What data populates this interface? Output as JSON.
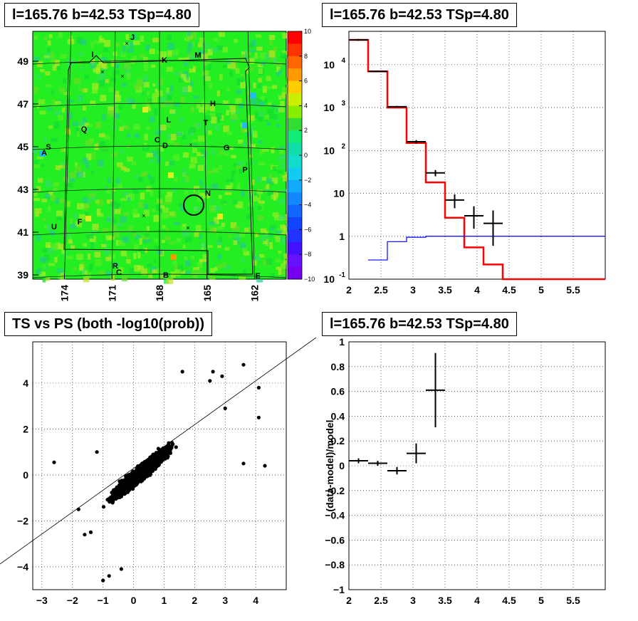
{
  "panels": {
    "map": {
      "title": "l=165.76 b=42.53 TSp=4.80",
      "y_ticks": [
        "49",
        "47",
        "45",
        "43",
        "41",
        "39"
      ],
      "x_ticks": [
        "174",
        "171",
        "168",
        "165",
        "162"
      ],
      "colorbar_ticks": [
        "10",
        "8",
        "6",
        "4",
        "2",
        "0",
        "−2",
        "−4",
        "−6",
        "−8",
        "−10"
      ],
      "region_letters": [
        "J",
        "I",
        "K",
        "M",
        "H",
        "L",
        "T",
        "Q",
        "C",
        "D",
        "G",
        "S",
        "A",
        "P",
        "N",
        "U",
        "F",
        "R",
        "C",
        "B",
        "E"
      ]
    },
    "spectrum": {
      "title": "l=165.76 b=42.53 TSp=4.80"
    },
    "scatter": {
      "title": "TS vs PS (both -log10(prob))"
    },
    "ratio": {
      "title": "l=165.76 b=42.53 TSp=4.80"
    }
  },
  "chart_data": [
    {
      "type": "heatmap",
      "title": "l=165.76 b=42.53 TSp=4.80",
      "xlabel": "",
      "ylabel": "",
      "x_ticks": [
        174,
        171,
        168,
        165,
        162
      ],
      "y_ticks": [
        49,
        47,
        45,
        43,
        41,
        39
      ],
      "xlim": [
        176,
        160
      ],
      "ylim": [
        38.8,
        50.4
      ],
      "z_range": [
        -10,
        10
      ],
      "colorbar_ticks": [
        10,
        8,
        6,
        4,
        2,
        0,
        -2,
        -4,
        -6,
        -8,
        -10
      ],
      "circle_center": [
        165.76,
        42.53
      ],
      "colors": {
        "background": "#22ee22",
        "grid": "#000000"
      }
    },
    {
      "type": "line",
      "title": "l=165.76 b=42.53 TSp=4.80",
      "xlabel": "",
      "ylabel": "",
      "xlim": [
        2,
        6
      ],
      "ylim": [
        0.1,
        60000
      ],
      "yscale": "log",
      "x_ticks": [
        2,
        2.5,
        3,
        3.5,
        4,
        4.5,
        5,
        5.5
      ],
      "y_ticks": [
        "10^-1",
        "1",
        "10",
        "10^2",
        "10^3",
        "10^4"
      ],
      "grid": true,
      "series": [
        {
          "color": "#ff0000",
          "style": "step",
          "edges": [
            2.0,
            2.3,
            2.6,
            2.9,
            3.2,
            3.5,
            3.8,
            4.1,
            4.4,
            6.0
          ],
          "values": [
            38000,
            7000,
            1000,
            150,
            18,
            2.7,
            0.55,
            0.22,
            0.1
          ]
        },
        {
          "color": "#0000ff",
          "style": "step",
          "edges": [
            2.3,
            2.6,
            2.9,
            3.2,
            6.0
          ],
          "values": [
            0.28,
            0.75,
            0.95,
            1.0
          ]
        },
        {
          "color": "#000000",
          "style": "errorbar",
          "x": [
            2.15,
            2.45,
            2.75,
            3.05,
            3.35,
            3.65,
            3.95,
            4.25
          ],
          "xerr": 0.15,
          "y": [
            38000,
            7000,
            1050,
            160,
            30,
            7,
            3,
            2
          ],
          "ylo": [
            36000,
            6800,
            1000,
            145,
            25,
            4.5,
            1.5,
            0.6
          ],
          "yhi": [
            40000,
            7200,
            1100,
            175,
            35,
            9.5,
            5,
            4
          ]
        }
      ]
    },
    {
      "type": "scatter",
      "title": "TS vs PS (both -log10(prob))",
      "xlabel": "",
      "ylabel": "",
      "xlim": [
        -3.3,
        5.0
      ],
      "ylim": [
        -5.0,
        5.8
      ],
      "x_ticks": [
        -3,
        -2,
        -1,
        0,
        1,
        2,
        3,
        4
      ],
      "y_ticks": [
        -4,
        -2,
        0,
        2,
        4
      ],
      "grid": true,
      "n_points": 6000,
      "diagonal_line": {
        "slope": 1,
        "intercept": 0
      },
      "outliers": [
        [
          -2.6,
          0.55
        ],
        [
          -1.8,
          -1.5
        ],
        [
          -1.6,
          -2.6
        ],
        [
          -1.4,
          -2.5
        ],
        [
          -1.0,
          -4.6
        ],
        [
          -0.8,
          -4.4
        ],
        [
          -0.4,
          -4.1
        ],
        [
          -1.2,
          1.0
        ],
        [
          3.6,
          4.8
        ],
        [
          4.1,
          3.8
        ],
        [
          4.1,
          2.5
        ],
        [
          4.3,
          0.4
        ],
        [
          3.6,
          0.5
        ],
        [
          3.0,
          2.9
        ],
        [
          2.5,
          4.1
        ],
        [
          2.6,
          4.5
        ],
        [
          2.9,
          4.3
        ],
        [
          1.6,
          4.5
        ]
      ]
    },
    {
      "type": "scatter",
      "title": "l=165.76 b=42.53 TSp=4.80",
      "xlabel": "",
      "ylabel": "(data-model)/model",
      "xlim": [
        2,
        6
      ],
      "ylim": [
        -1,
        1
      ],
      "x_ticks": [
        2,
        2.5,
        3,
        3.5,
        4,
        4.5,
        5,
        5.5
      ],
      "y_ticks": [
        -1,
        -0.8,
        -0.6,
        -0.4,
        -0.2,
        0,
        0.2,
        0.4,
        0.6,
        0.8,
        1
      ],
      "grid": true,
      "x": [
        2.15,
        2.45,
        2.75,
        3.05,
        3.35
      ],
      "xerr": 0.15,
      "y": [
        0.04,
        0.02,
        -0.04,
        0.1,
        0.61
      ],
      "yerr": [
        0.02,
        0.02,
        0.03,
        0.08,
        0.3
      ]
    }
  ]
}
